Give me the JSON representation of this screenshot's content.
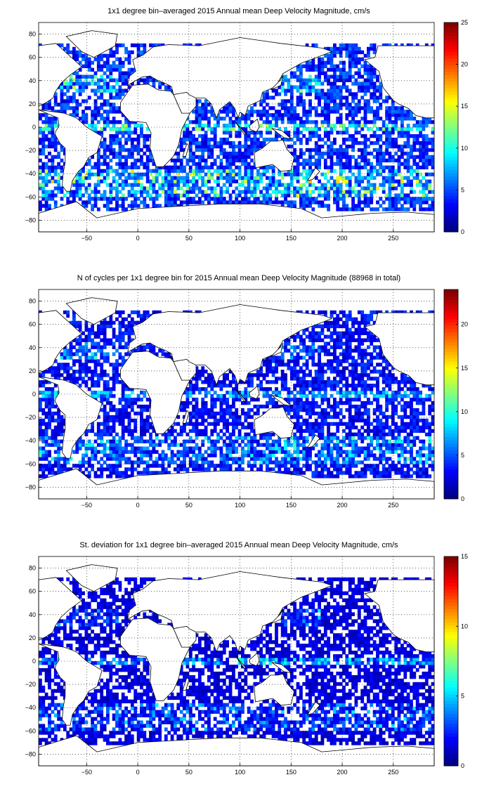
{
  "panels": [
    {
      "title": "1x1 degree bin–averaged 2015 Annual mean Deep Velocity Magnitude, cm/s",
      "colorbar": {
        "min": 0,
        "max": 25,
        "ticks": [
          "25",
          "20",
          "15",
          "10",
          "5",
          "0"
        ],
        "tick_values": [
          25,
          20,
          15,
          10,
          5,
          0
        ]
      },
      "field_style": {
        "mean_level": 0.18,
        "hotspot_strength": 0.55,
        "equator_band": 0.35
      }
    },
    {
      "title": "N of cycles per 1x1 degree bin for 2015 Annual mean Deep Velocity Magnitude (88968 in total)",
      "colorbar": {
        "min": 0,
        "max": 24,
        "ticks": [
          "20",
          "15",
          "10",
          "5",
          "0"
        ],
        "tick_values": [
          20,
          15,
          10,
          5,
          0
        ]
      },
      "field_style": {
        "mean_level": 0.14,
        "hotspot_strength": 0.35,
        "equator_band": 0.25
      }
    },
    {
      "title": "St. deviation for 1x1 degree bin–averaged 2015 Annual mean Deep Velocity Magnitude, cm/s",
      "colorbar": {
        "min": 0,
        "max": 15,
        "ticks": [
          "15",
          "10",
          "5",
          "0"
        ],
        "tick_values": [
          15,
          10,
          5,
          0
        ]
      },
      "field_style": {
        "mean_level": 0.1,
        "hotspot_strength": 0.3,
        "equator_band": 0.3
      }
    }
  ],
  "axes": {
    "x_ticks": [
      "−50",
      "0",
      "50",
      "100",
      "150",
      "200",
      "250"
    ],
    "x_tick_values": [
      -50,
      0,
      50,
      100,
      150,
      200,
      250
    ],
    "y_ticks": [
      "80",
      "60",
      "40",
      "20",
      "0",
      "−20",
      "−40",
      "−60",
      "−80"
    ],
    "y_tick_values": [
      80,
      60,
      40,
      20,
      0,
      -20,
      -40,
      -60,
      -80
    ],
    "xlim": [
      -97,
      290
    ],
    "ylim": [
      -90,
      90
    ],
    "grid": "dotted"
  },
  "chart_data": [
    {
      "type": "heatmap",
      "title": "1x1 degree bin–averaged 2015 Annual mean Deep Velocity Magnitude, cm/s",
      "xlim": [
        -97,
        290
      ],
      "ylim": [
        -90,
        90
      ],
      "colorbar_range": [
        0,
        25
      ],
      "colormap": "jet"
    },
    {
      "type": "heatmap",
      "title": "N of cycles per 1x1 degree bin for 2015 Annual mean Deep Velocity Magnitude (88968 in total)",
      "xlim": [
        -97,
        290
      ],
      "ylim": [
        -90,
        90
      ],
      "colorbar_range": [
        0,
        24
      ],
      "colormap": "jet"
    },
    {
      "type": "heatmap",
      "title": "St. deviation for 1x1 degree bin–averaged 2015 Annual mean Deep Velocity Magnitude, cm/s",
      "xlim": [
        -97,
        290
      ],
      "ylim": [
        -90,
        90
      ],
      "colorbar_range": [
        0,
        15
      ],
      "colormap": "jet"
    }
  ],
  "colors": {
    "axis": "#000000",
    "grid": "#000000",
    "land": "#ffffff",
    "coast": "#000000"
  }
}
